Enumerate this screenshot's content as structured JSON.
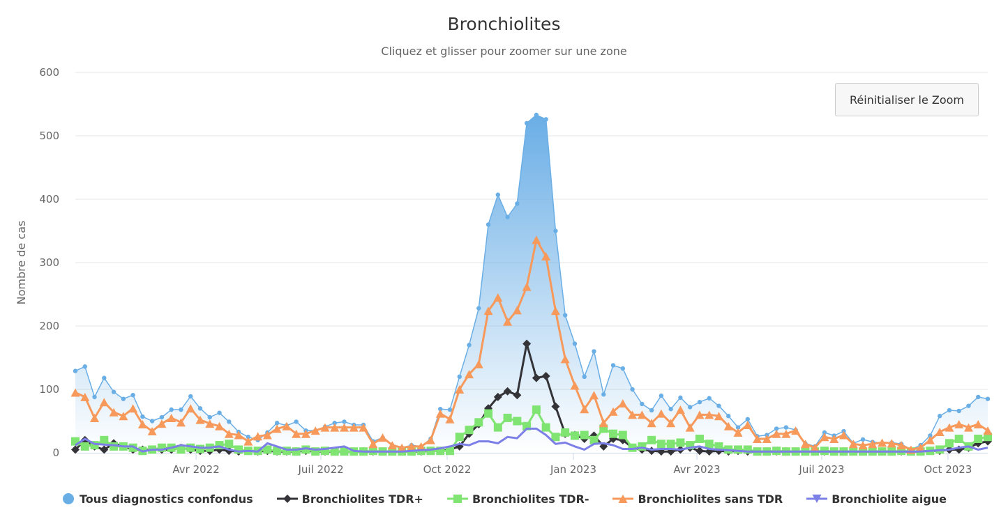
{
  "title": "Bronchiolites",
  "subtitle": "Cliquez et glisser pour zoomer sur une zone",
  "reset_zoom_label": "Réinitialiser le Zoom",
  "chart_data": {
    "type": "area",
    "title": "Bronchiolites",
    "subtitle": "Cliquez et glisser pour zoomer sur une zone",
    "ylabel": "Nombre de cas",
    "xlabel": "",
    "ylim": [
      0,
      600
    ],
    "yticks": [
      0,
      100,
      200,
      300,
      400,
      500,
      600
    ],
    "xticks": [
      {
        "date": "2022-04-01",
        "label": "Avr 2022"
      },
      {
        "date": "2022-07-01",
        "label": "Juil 2022"
      },
      {
        "date": "2022-10-01",
        "label": "Oct 2022"
      },
      {
        "date": "2023-01-01",
        "label": "Jan 2023"
      },
      {
        "date": "2023-04-01",
        "label": "Avr 2023"
      },
      {
        "date": "2023-07-01",
        "label": "Juil 2023"
      },
      {
        "date": "2023-10-01",
        "label": "Oct 2023"
      }
    ],
    "grid": true,
    "legend": "bottom",
    "x": [
      "2022-01-03",
      "2022-01-10",
      "2022-01-17",
      "2022-01-24",
      "2022-01-31",
      "2022-02-07",
      "2022-02-14",
      "2022-02-21",
      "2022-02-28",
      "2022-03-07",
      "2022-03-14",
      "2022-03-21",
      "2022-03-28",
      "2022-04-04",
      "2022-04-11",
      "2022-04-18",
      "2022-04-25",
      "2022-05-02",
      "2022-05-09",
      "2022-05-16",
      "2022-05-23",
      "2022-05-30",
      "2022-06-06",
      "2022-06-13",
      "2022-06-20",
      "2022-06-27",
      "2022-07-04",
      "2022-07-11",
      "2022-07-18",
      "2022-07-25",
      "2022-08-01",
      "2022-08-08",
      "2022-08-15",
      "2022-08-22",
      "2022-08-29",
      "2022-09-05",
      "2022-09-12",
      "2022-09-19",
      "2022-09-26",
      "2022-10-03",
      "2022-10-10",
      "2022-10-17",
      "2022-10-24",
      "2022-10-31",
      "2022-11-07",
      "2022-11-14",
      "2022-11-21",
      "2022-11-28",
      "2022-12-05",
      "2022-12-12",
      "2022-12-19",
      "2022-12-26",
      "2023-01-02",
      "2023-01-09",
      "2023-01-16",
      "2023-01-23",
      "2023-01-30",
      "2023-02-06",
      "2023-02-13",
      "2023-02-20",
      "2023-02-27",
      "2023-03-06",
      "2023-03-13",
      "2023-03-20",
      "2023-03-27",
      "2023-04-03",
      "2023-04-10",
      "2023-04-17",
      "2023-04-24",
      "2023-05-01",
      "2023-05-08",
      "2023-05-15",
      "2023-05-22",
      "2023-05-29",
      "2023-06-05",
      "2023-06-12",
      "2023-06-19",
      "2023-06-26",
      "2023-07-03",
      "2023-07-10",
      "2023-07-17",
      "2023-07-24",
      "2023-07-31",
      "2023-08-07",
      "2023-08-14",
      "2023-08-21",
      "2023-08-28",
      "2023-09-04",
      "2023-09-11",
      "2023-09-18",
      "2023-09-25",
      "2023-10-02",
      "2023-10-09",
      "2023-10-16",
      "2023-10-23",
      "2023-10-30"
    ],
    "series": [
      {
        "name": "Tous diagnostics confondus",
        "color": "#6aaee6",
        "marker": "circle",
        "style": "area",
        "values": [
          129,
          136,
          88,
          118,
          96,
          85,
          91,
          57,
          50,
          56,
          68,
          68,
          89,
          70,
          56,
          63,
          49,
          33,
          25,
          20,
          32,
          47,
          43,
          49,
          35,
          35,
          41,
          47,
          49,
          44,
          44,
          18,
          24,
          12,
          8,
          12,
          10,
          22,
          69,
          68,
          120,
          170,
          228,
          360,
          407,
          372,
          393,
          520,
          533,
          526,
          350,
          217,
          172,
          120,
          160,
          92,
          138,
          133,
          100,
          77,
          67,
          90,
          69,
          87,
          72,
          80,
          86,
          74,
          58,
          40,
          53,
          26,
          28,
          38,
          40,
          36,
          15,
          10,
          32,
          27,
          34,
          15,
          21,
          17,
          15,
          16,
          14,
          5,
          12,
          27,
          58,
          67,
          66,
          74,
          88,
          85
        ]
      },
      {
        "name": "Bronchiolites TDR+",
        "color": "#333338",
        "marker": "diamond",
        "style": "line",
        "values": [
          5,
          20,
          10,
          5,
          15,
          10,
          5,
          5,
          5,
          5,
          5,
          8,
          5,
          3,
          3,
          5,
          3,
          2,
          3,
          2,
          3,
          2,
          2,
          2,
          3,
          2,
          2,
          2,
          2,
          2,
          2,
          2,
          2,
          2,
          2,
          2,
          2,
          3,
          3,
          5,
          10,
          30,
          45,
          70,
          88,
          97,
          91,
          172,
          118,
          121,
          73,
          30,
          28,
          22,
          27,
          10,
          22,
          20,
          8,
          5,
          3,
          2,
          2,
          5,
          8,
          3,
          2,
          3,
          2,
          3,
          2,
          2,
          2,
          2,
          2,
          2,
          2,
          2,
          2,
          2,
          2,
          2,
          2,
          2,
          2,
          2,
          2,
          2,
          2,
          3,
          3,
          5,
          5,
          8,
          15,
          18
        ]
      },
      {
        "name": "Bronchiolites TDR-",
        "color": "#80e472",
        "marker": "square",
        "style": "line",
        "values": [
          18,
          10,
          12,
          20,
          10,
          10,
          8,
          3,
          5,
          8,
          8,
          5,
          8,
          6,
          8,
          12,
          14,
          5,
          3,
          3,
          5,
          3,
          3,
          2,
          5,
          2,
          3,
          2,
          2,
          2,
          2,
          3,
          2,
          2,
          2,
          2,
          3,
          3,
          3,
          3,
          25,
          36,
          48,
          62,
          40,
          55,
          50,
          42,
          68,
          40,
          25,
          32,
          27,
          28,
          20,
          38,
          30,
          28,
          8,
          10,
          20,
          14,
          14,
          16,
          12,
          22,
          14,
          10,
          5,
          5,
          5,
          2,
          2,
          3,
          2,
          2,
          2,
          2,
          3,
          2,
          2,
          2,
          2,
          2,
          2,
          2,
          3,
          2,
          2,
          3,
          5,
          15,
          22,
          10,
          22,
          25
        ]
      },
      {
        "name": "Bronchiolites sans TDR",
        "color": "#f7995a",
        "marker": "triangle",
        "style": "line",
        "values": [
          95,
          88,
          55,
          80,
          64,
          58,
          70,
          45,
          34,
          46,
          55,
          48,
          70,
          52,
          46,
          42,
          30,
          28,
          18,
          26,
          28,
          38,
          42,
          30,
          30,
          35,
          40,
          40,
          40,
          40,
          40,
          14,
          24,
          12,
          8,
          10,
          10,
          20,
          62,
          53,
          100,
          124,
          140,
          224,
          245,
          207,
          225,
          262,
          336,
          310,
          224,
          148,
          106,
          69,
          91,
          47,
          65,
          78,
          60,
          60,
          47,
          62,
          47,
          68,
          40,
          60,
          60,
          58,
          42,
          32,
          44,
          22,
          22,
          30,
          30,
          35,
          14,
          8,
          25,
          22,
          28,
          14,
          12,
          14,
          16,
          15,
          12,
          5,
          8,
          20,
          33,
          40,
          45,
          40,
          45,
          35
        ]
      },
      {
        "name": "Bronchiolite aigue",
        "color": "#7b7fe6",
        "marker": "triangle-down",
        "style": "line",
        "values": [
          12,
          22,
          14,
          13,
          12,
          10,
          10,
          2,
          5,
          5,
          8,
          12,
          10,
          8,
          8,
          10,
          5,
          2,
          3,
          2,
          15,
          10,
          5,
          5,
          7,
          5,
          6,
          8,
          10,
          3,
          2,
          2,
          2,
          2,
          2,
          3,
          4,
          5,
          7,
          10,
          14,
          12,
          18,
          18,
          15,
          25,
          23,
          38,
          38,
          28,
          14,
          16,
          10,
          5,
          14,
          15,
          12,
          6,
          6,
          8,
          5,
          6,
          6,
          5,
          8,
          10,
          6,
          5,
          4,
          3,
          2,
          2,
          2,
          2,
          2,
          2,
          2,
          2,
          2,
          2,
          2,
          2,
          2,
          2,
          2,
          2,
          2,
          2,
          2,
          3,
          4,
          5,
          8,
          10,
          5,
          8
        ]
      }
    ]
  }
}
